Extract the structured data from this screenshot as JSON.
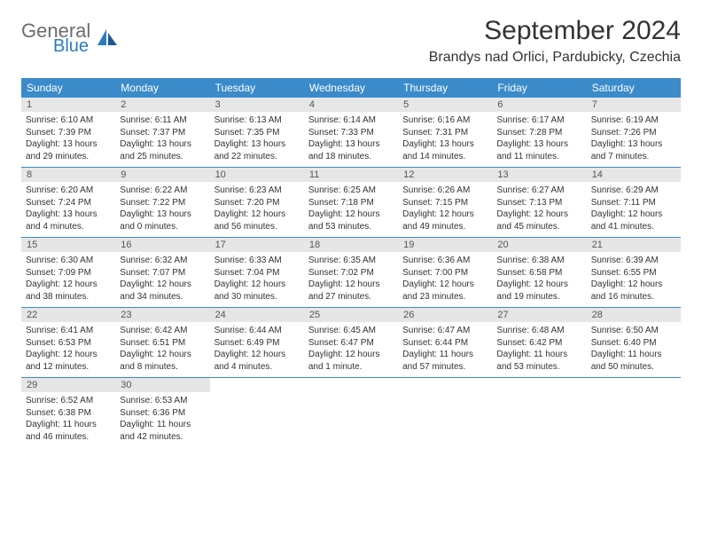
{
  "brand": {
    "main": "General",
    "sub": "Blue"
  },
  "title": "September 2024",
  "location": "Brandys nad Orlici, Pardubicky, Czechia",
  "colors": {
    "header_bg": "#3b8bca",
    "header_text": "#ffffff",
    "daynum_bg": "#e6e6e6",
    "brand_main": "#6a6d71",
    "brand_sub": "#2d7bc0"
  },
  "dayNames": [
    "Sunday",
    "Monday",
    "Tuesday",
    "Wednesday",
    "Thursday",
    "Friday",
    "Saturday"
  ],
  "days": {
    "1": {
      "sunrise": "6:10 AM",
      "sunset": "7:39 PM",
      "dl_h": 13,
      "dl_m": 29
    },
    "2": {
      "sunrise": "6:11 AM",
      "sunset": "7:37 PM",
      "dl_h": 13,
      "dl_m": 25
    },
    "3": {
      "sunrise": "6:13 AM",
      "sunset": "7:35 PM",
      "dl_h": 13,
      "dl_m": 22
    },
    "4": {
      "sunrise": "6:14 AM",
      "sunset": "7:33 PM",
      "dl_h": 13,
      "dl_m": 18
    },
    "5": {
      "sunrise": "6:16 AM",
      "sunset": "7:31 PM",
      "dl_h": 13,
      "dl_m": 14
    },
    "6": {
      "sunrise": "6:17 AM",
      "sunset": "7:28 PM",
      "dl_h": 13,
      "dl_m": 11
    },
    "7": {
      "sunrise": "6:19 AM",
      "sunset": "7:26 PM",
      "dl_h": 13,
      "dl_m": 7
    },
    "8": {
      "sunrise": "6:20 AM",
      "sunset": "7:24 PM",
      "dl_h": 13,
      "dl_m": 4
    },
    "9": {
      "sunrise": "6:22 AM",
      "sunset": "7:22 PM",
      "dl_h": 13,
      "dl_m": 0
    },
    "10": {
      "sunrise": "6:23 AM",
      "sunset": "7:20 PM",
      "dl_h": 12,
      "dl_m": 56
    },
    "11": {
      "sunrise": "6:25 AM",
      "sunset": "7:18 PM",
      "dl_h": 12,
      "dl_m": 53
    },
    "12": {
      "sunrise": "6:26 AM",
      "sunset": "7:15 PM",
      "dl_h": 12,
      "dl_m": 49
    },
    "13": {
      "sunrise": "6:27 AM",
      "sunset": "7:13 PM",
      "dl_h": 12,
      "dl_m": 45
    },
    "14": {
      "sunrise": "6:29 AM",
      "sunset": "7:11 PM",
      "dl_h": 12,
      "dl_m": 41
    },
    "15": {
      "sunrise": "6:30 AM",
      "sunset": "7:09 PM",
      "dl_h": 12,
      "dl_m": 38
    },
    "16": {
      "sunrise": "6:32 AM",
      "sunset": "7:07 PM",
      "dl_h": 12,
      "dl_m": 34
    },
    "17": {
      "sunrise": "6:33 AM",
      "sunset": "7:04 PM",
      "dl_h": 12,
      "dl_m": 30
    },
    "18": {
      "sunrise": "6:35 AM",
      "sunset": "7:02 PM",
      "dl_h": 12,
      "dl_m": 27
    },
    "19": {
      "sunrise": "6:36 AM",
      "sunset": "7:00 PM",
      "dl_h": 12,
      "dl_m": 23
    },
    "20": {
      "sunrise": "6:38 AM",
      "sunset": "6:58 PM",
      "dl_h": 12,
      "dl_m": 19
    },
    "21": {
      "sunrise": "6:39 AM",
      "sunset": "6:55 PM",
      "dl_h": 12,
      "dl_m": 16
    },
    "22": {
      "sunrise": "6:41 AM",
      "sunset": "6:53 PM",
      "dl_h": 12,
      "dl_m": 12
    },
    "23": {
      "sunrise": "6:42 AM",
      "sunset": "6:51 PM",
      "dl_h": 12,
      "dl_m": 8
    },
    "24": {
      "sunrise": "6:44 AM",
      "sunset": "6:49 PM",
      "dl_h": 12,
      "dl_m": 4
    },
    "25": {
      "sunrise": "6:45 AM",
      "sunset": "6:47 PM",
      "dl_h": 12,
      "dl_m": 1
    },
    "26": {
      "sunrise": "6:47 AM",
      "sunset": "6:44 PM",
      "dl_h": 11,
      "dl_m": 57
    },
    "27": {
      "sunrise": "6:48 AM",
      "sunset": "6:42 PM",
      "dl_h": 11,
      "dl_m": 53
    },
    "28": {
      "sunrise": "6:50 AM",
      "sunset": "6:40 PM",
      "dl_h": 11,
      "dl_m": 50
    },
    "29": {
      "sunrise": "6:52 AM",
      "sunset": "6:38 PM",
      "dl_h": 11,
      "dl_m": 46
    },
    "30": {
      "sunrise": "6:53 AM",
      "sunset": "6:36 PM",
      "dl_h": 11,
      "dl_m": 42
    }
  },
  "weeks": [
    [
      1,
      2,
      3,
      4,
      5,
      6,
      7
    ],
    [
      8,
      9,
      10,
      11,
      12,
      13,
      14
    ],
    [
      15,
      16,
      17,
      18,
      19,
      20,
      21
    ],
    [
      22,
      23,
      24,
      25,
      26,
      27,
      28
    ],
    [
      29,
      30,
      null,
      null,
      null,
      null,
      null
    ]
  ]
}
